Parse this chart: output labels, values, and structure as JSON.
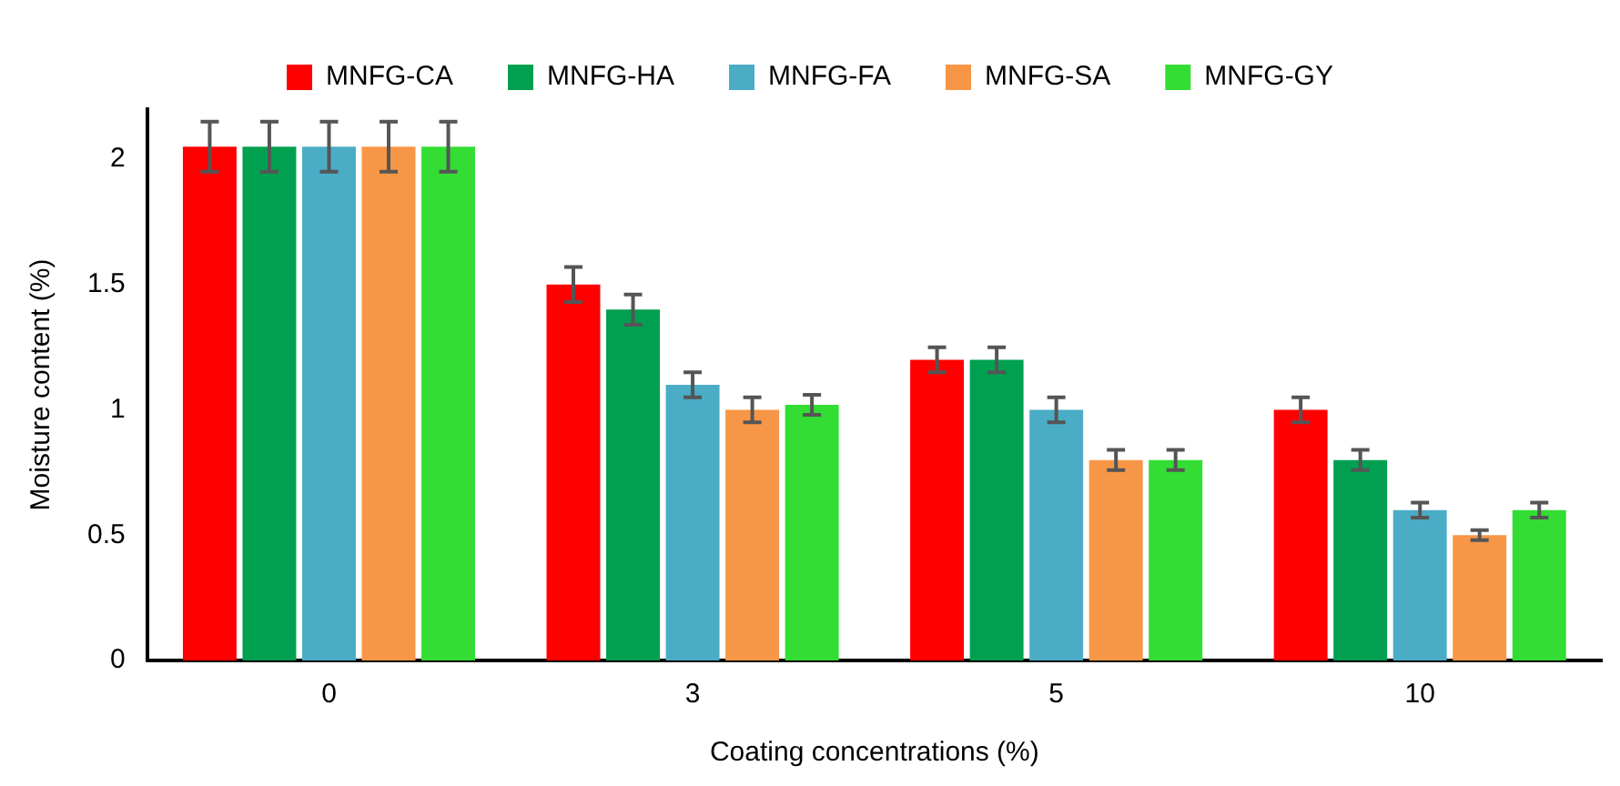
{
  "chart_data": {
    "type": "bar",
    "xlabel": "Coating concentrations (%)",
    "ylabel": "Moisture content (%)",
    "categories": [
      "0",
      "3",
      "5",
      "10"
    ],
    "series": [
      {
        "name": "MNFG-CA",
        "color": "#ff0000",
        "values": [
          2.05,
          1.5,
          1.2,
          1.0
        ],
        "errors": [
          0.1,
          0.07,
          0.05,
          0.05
        ]
      },
      {
        "name": "MNFG-HA",
        "color": "#00a050",
        "values": [
          2.05,
          1.4,
          1.2,
          0.8
        ],
        "errors": [
          0.1,
          0.06,
          0.05,
          0.04
        ]
      },
      {
        "name": "MNFG-FA",
        "color": "#4bacc6",
        "values": [
          2.05,
          1.1,
          1.0,
          0.6
        ],
        "errors": [
          0.1,
          0.05,
          0.05,
          0.03
        ]
      },
      {
        "name": "MNFG-SA",
        "color": "#f79646",
        "values": [
          2.05,
          1.0,
          0.8,
          0.5
        ],
        "errors": [
          0.1,
          0.05,
          0.04,
          0.02
        ]
      },
      {
        "name": "MNFG-GY",
        "color": "#33dd33",
        "values": [
          2.05,
          1.02,
          0.8,
          0.6
        ],
        "errors": [
          0.1,
          0.04,
          0.04,
          0.03
        ]
      }
    ],
    "ylim": [
      0,
      2.2
    ],
    "yticks": [
      0,
      0.5,
      1,
      1.5,
      2
    ],
    "grid": false,
    "legend": "top"
  }
}
